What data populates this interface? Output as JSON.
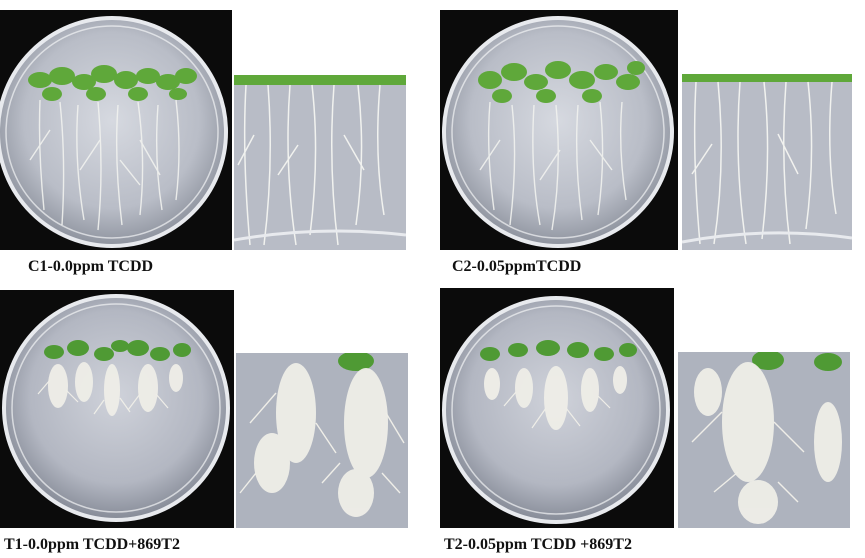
{
  "panels": [
    {
      "id": "c1",
      "caption": "C1-0.0ppm TCDD",
      "roots": "normal"
    },
    {
      "id": "c2",
      "caption": "C2-0.05ppmTCDD",
      "roots": "normal"
    },
    {
      "id": "t1",
      "caption": "T1-0.0ppm TCDD+869T2",
      "roots": "hairy"
    },
    {
      "id": "t2",
      "caption": "T2-0.05ppm TCDD +869T2",
      "roots": "hairy"
    }
  ],
  "colors": {
    "background": "#0b0b0b",
    "agar": "#c9ccd4",
    "leaf": "#5fa83a",
    "root": "#eef0ec"
  }
}
